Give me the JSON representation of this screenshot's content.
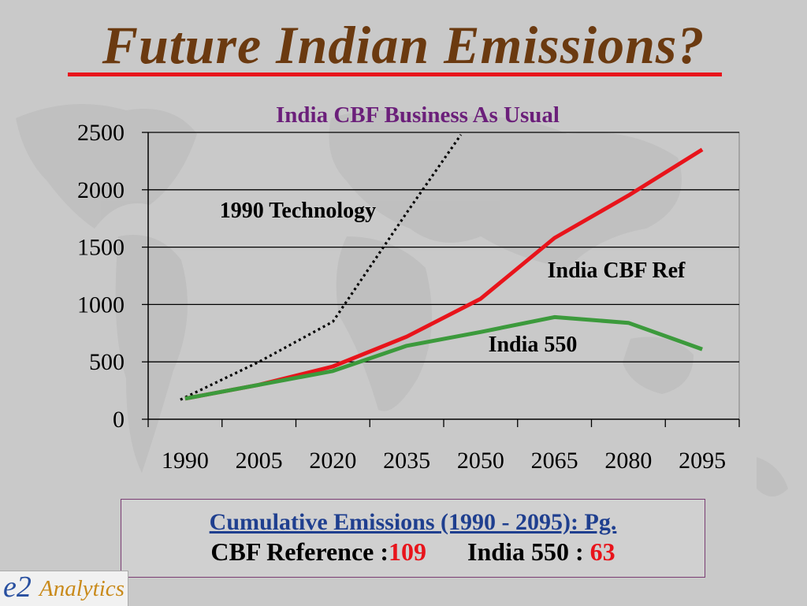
{
  "slide": {
    "title": "Future Indian Emissions?"
  },
  "chart_data": {
    "type": "line",
    "title": "India CBF Business As Usual",
    "x": [
      1990,
      2005,
      2020,
      2035,
      2050,
      2065,
      2080,
      2095
    ],
    "x_tick_labels": [
      "1990",
      "2005",
      "2020",
      "2035",
      "2050",
      "2065",
      "2080",
      "2095"
    ],
    "y_tick_labels": [
      "0",
      "500",
      "1000",
      "1500",
      "2000",
      "2500"
    ],
    "ylim": [
      0,
      2500
    ],
    "grid": "horizontal",
    "series": [
      {
        "name": "1990 Technology",
        "color": "#000000",
        "style": "dotted",
        "x": [
          1990,
          2005,
          2020,
          2035,
          2046
        ],
        "values": [
          170,
          500,
          850,
          1800,
          2480
        ]
      },
      {
        "name": "India CBF Ref",
        "color": "#e8141b",
        "style": "solid",
        "x": [
          1990,
          2005,
          2020,
          2035,
          2050,
          2065,
          2080,
          2095
        ],
        "values": [
          180,
          300,
          460,
          720,
          1050,
          1580,
          1950,
          2350
        ]
      },
      {
        "name": "India 550",
        "color": "#3c9a3c",
        "style": "solid",
        "x": [
          1990,
          2005,
          2020,
          2035,
          2050,
          2065,
          2080,
          2095
        ],
        "values": [
          180,
          300,
          420,
          640,
          760,
          890,
          840,
          610
        ]
      }
    ]
  },
  "summary": {
    "heading": "Cumulative Emissions (1990 - 2095): Pg.",
    "ref_label": "CBF Reference :",
    "ref_value": "109",
    "india550_label": "India 550 : ",
    "india550_value": "63"
  },
  "logo": {
    "mark": "e2",
    "text": "Analytics"
  }
}
